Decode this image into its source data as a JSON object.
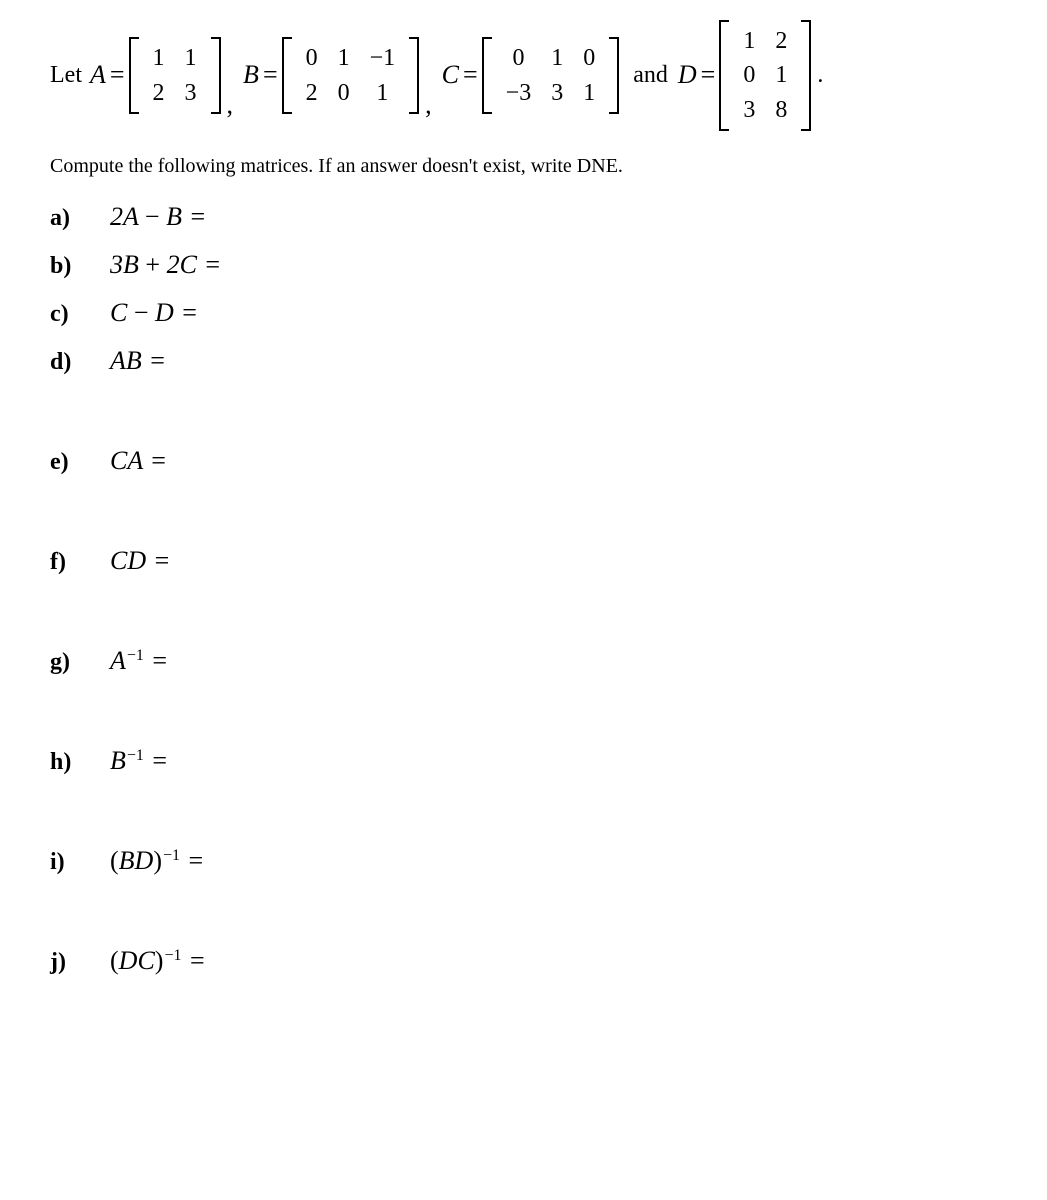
{
  "intro": {
    "let": "Let",
    "and": "and",
    "period": "."
  },
  "matrices": {
    "A": {
      "name": "A",
      "rows": 2,
      "cols": 2,
      "cells": [
        "1",
        "1",
        "2",
        "3"
      ]
    },
    "B": {
      "name": "B",
      "rows": 2,
      "cols": 3,
      "cells": [
        "0",
        "1",
        "−1",
        "2",
        "0",
        "1"
      ]
    },
    "C": {
      "name": "C",
      "rows": 2,
      "cols": 3,
      "cells": [
        "0",
        "1",
        "0",
        "−3",
        "3",
        "1"
      ]
    },
    "D": {
      "name": "D",
      "rows": 3,
      "cols": 2,
      "cells": [
        "1",
        "2",
        "0",
        "1",
        "3",
        "8"
      ]
    }
  },
  "instruction": "Compute the following matrices.  If an answer doesn't exist, write DNE.",
  "questions": {
    "a": {
      "label": "a)",
      "expr_html": "2<span class='mname'>A</span> <span class='upright'>−</span> <span class='mname'>B</span> <span class='eq'>=</span>"
    },
    "b": {
      "label": "b)",
      "expr_html": "3<span class='mname'>B</span> <span class='upright'>+</span> 2<span class='mname'>C</span> <span class='eq'>=</span>"
    },
    "c": {
      "label": "c)",
      "expr_html": "<span class='mname'>C</span> <span class='upright'>−</span> <span class='mname'>D</span> <span class='eq'>=</span>"
    },
    "d": {
      "label": "d)",
      "expr_html": "<span class='mname'>AB</span> <span class='eq'>=</span>"
    },
    "e": {
      "label": "e)",
      "expr_html": "<span class='mname'>CA</span> <span class='eq'>=</span>"
    },
    "f": {
      "label": "f)",
      "expr_html": "<span class='mname'>CD</span> <span class='eq'>=</span>"
    },
    "g": {
      "label": "g)",
      "expr_html": "<span class='mname'>A</span><span class='sup'>−1</span> <span class='eq'>=</span>"
    },
    "h": {
      "label": "h)",
      "expr_html": "<span class='mname'>B</span><span class='sup'>−1</span> <span class='eq'>=</span>"
    },
    "i": {
      "label": "i)",
      "expr_html": "<span class='upright'>(</span><span class='mname'>BD</span><span class='upright'>)</span><span class='sup'>−1</span> <span class='eq'>=</span>"
    },
    "j": {
      "label": "j)",
      "expr_html": "<span class='upright'>(</span><span class='mname'>DC</span><span class='upright'>)</span><span class='sup'>−1</span> <span class='eq'>=</span>"
    }
  },
  "layout": {
    "question_spacing_normal": 18,
    "question_spacing_tall": 70,
    "tall_after": [
      "d",
      "e",
      "f",
      "g",
      "h",
      "i"
    ]
  },
  "style": {
    "font_family": "Times New Roman",
    "base_font_size": 22,
    "math_font_size": 26,
    "instruction_font_size": 20,
    "label_font_weight": "bold",
    "text_color": "#000000",
    "background_color": "#ffffff",
    "bracket_stroke": 2
  }
}
